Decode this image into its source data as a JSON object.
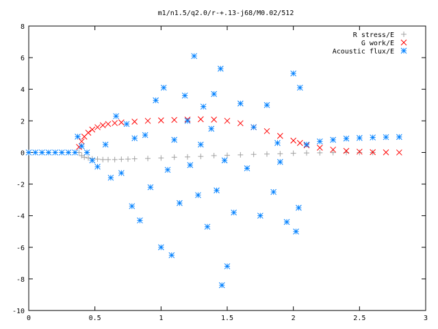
{
  "chart_data": {
    "type": "scatter",
    "title": "m1/n1.5/q2.0/r-+.13-j68/M0.02/512",
    "xlabel": "",
    "ylabel": "",
    "xlim": [
      0,
      3
    ],
    "ylim": [
      -10,
      8
    ],
    "xticks": [
      0,
      0.5,
      1,
      1.5,
      2,
      2.5,
      3
    ],
    "yticks": [
      -10,
      -8,
      -6,
      -4,
      -2,
      0,
      2,
      4,
      6,
      8
    ],
    "xtick_labels": [
      "0",
      "0.5",
      "1",
      "1.5",
      "2",
      "2.5",
      "3"
    ],
    "ytick_labels": [
      "-10",
      "-8",
      "-6",
      "-4",
      "-2",
      "0",
      "2",
      "4",
      "6",
      "8"
    ],
    "grid": false,
    "legend_position": "top-right",
    "series": [
      {
        "name": "R stress/E",
        "marker": "plus",
        "color": "#a0a0a0",
        "x": [
          0.38,
          0.4,
          0.42,
          0.45,
          0.48,
          0.52,
          0.56,
          0.6,
          0.65,
          0.7,
          0.75,
          0.8,
          0.9,
          1.0,
          1.1,
          1.2,
          1.3,
          1.4,
          1.5,
          1.6,
          1.7,
          1.8,
          1.9,
          2.0,
          2.1,
          2.2,
          2.3,
          2.4,
          2.5,
          2.6
        ],
        "y": [
          0.0,
          -0.2,
          -0.3,
          -0.35,
          -0.4,
          -0.42,
          -0.45,
          -0.45,
          -0.45,
          -0.43,
          -0.42,
          -0.4,
          -0.38,
          -0.35,
          -0.3,
          -0.28,
          -0.25,
          -0.2,
          -0.18,
          -0.15,
          -0.12,
          -0.1,
          -0.08,
          -0.05,
          -0.03,
          -0.02,
          -0.01,
          0.0,
          0.0,
          0.0
        ]
      },
      {
        "name": "G work/E",
        "marker": "x",
        "color": "#ff0000",
        "x": [
          0.38,
          0.4,
          0.42,
          0.45,
          0.48,
          0.52,
          0.56,
          0.6,
          0.65,
          0.7,
          0.8,
          0.9,
          1.0,
          1.1,
          1.2,
          1.3,
          1.4,
          1.5,
          1.6,
          1.7,
          1.8,
          1.9,
          2.0,
          2.05,
          2.1,
          2.2,
          2.3,
          2.4,
          2.5,
          2.6,
          2.7,
          2.8
        ],
        "y": [
          0.35,
          0.7,
          1.0,
          1.25,
          1.45,
          1.6,
          1.72,
          1.8,
          1.86,
          1.9,
          1.95,
          2.0,
          2.03,
          2.06,
          2.08,
          2.1,
          2.08,
          2.0,
          1.85,
          1.6,
          1.35,
          1.05,
          0.75,
          0.6,
          0.45,
          0.3,
          0.18,
          0.1,
          0.05,
          0.02,
          0.01,
          0.0
        ]
      },
      {
        "name": "Acoustic flux/E",
        "marker": "star",
        "color": "#0080ff",
        "x": [
          0.0,
          0.05,
          0.1,
          0.15,
          0.2,
          0.25,
          0.3,
          0.35,
          0.37,
          0.4,
          0.44,
          0.48,
          0.52,
          0.58,
          0.62,
          0.66,
          0.7,
          0.74,
          0.78,
          0.8,
          0.84,
          0.88,
          0.92,
          0.96,
          1.0,
          1.02,
          1.05,
          1.08,
          1.1,
          1.14,
          1.18,
          1.2,
          1.22,
          1.25,
          1.28,
          1.3,
          1.32,
          1.35,
          1.38,
          1.4,
          1.42,
          1.45,
          1.46,
          1.48,
          1.5,
          1.55,
          1.6,
          1.65,
          1.7,
          1.75,
          1.8,
          1.85,
          1.88,
          1.9,
          1.95,
          2.0,
          2.02,
          2.04,
          2.05,
          2.1,
          2.2,
          2.3,
          2.4,
          2.5,
          2.6,
          2.7,
          2.8
        ],
        "y": [
          0.0,
          0.0,
          0.0,
          0.0,
          0.0,
          0.0,
          0.0,
          0.0,
          1.0,
          0.4,
          0.0,
          -0.5,
          -0.9,
          0.5,
          -1.6,
          2.3,
          -1.3,
          1.8,
          -3.4,
          0.9,
          -4.3,
          1.1,
          -2.2,
          3.3,
          -6.0,
          4.1,
          -1.1,
          -6.5,
          0.8,
          -3.2,
          3.6,
          2.0,
          -0.8,
          6.1,
          -2.7,
          0.5,
          2.9,
          -4.7,
          1.5,
          3.7,
          -2.4,
          5.3,
          -8.4,
          -0.5,
          -7.2,
          -3.8,
          3.1,
          -1.0,
          1.6,
          -4.0,
          3.0,
          -2.5,
          0.6,
          -0.6,
          -4.4,
          5.0,
          -5.0,
          -3.5,
          4.1,
          0.5,
          0.7,
          0.8,
          0.88,
          0.92,
          0.95,
          0.97,
          0.98
        ]
      }
    ]
  }
}
